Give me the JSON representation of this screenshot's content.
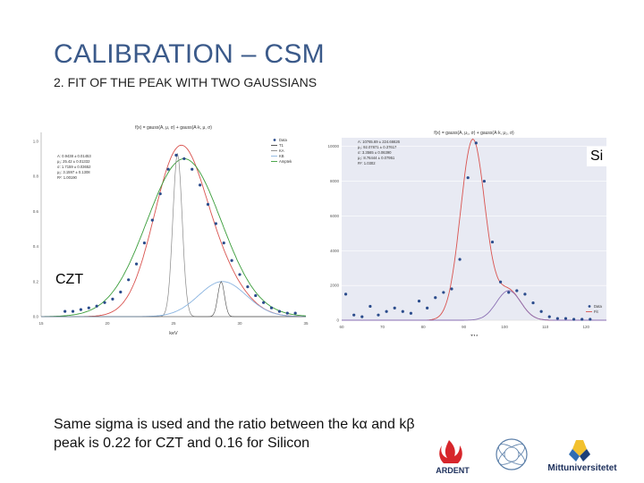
{
  "slide": {
    "title": "CALIBRATION – CSM",
    "subtitle": "2. FIT OF THE PEAK WITH TWO GAUSSIANS",
    "caption": "Same sigma is used and the ratio between the kα and kβ peak is 0.22 for CZT and 0.16 for Silicon"
  },
  "labels": {
    "czt": "CZT",
    "si": "Si"
  },
  "chart_data": [
    {
      "type": "scatter",
      "title": "f(x) = gauss(A, μ, σ) + gauss(A·k, μ, σ)",
      "xlabel": "keV",
      "ylabel": "",
      "xlim": [
        15,
        35
      ],
      "ylim": [
        0,
        1.05
      ],
      "x_ticks": [
        "15",
        "20",
        "25",
        "30",
        "35"
      ],
      "y_ticks": [
        "0.0",
        "0.2",
        "0.4",
        "0.6",
        "0.8",
        "1.0"
      ],
      "legend": [
        "Data",
        "T1",
        "KA",
        "KB",
        "Amptek"
      ],
      "legend_position": "top-right",
      "fit_text": [
        "A: 0.9438 ± 0.01453",
        "μ₁: 25.42 ± 0.01332",
        "σ: 1.7159 ± 0.03652",
        "μ₂: 3.1597 ± 0.1308",
        "R²: 1.00190"
      ],
      "points": [
        [
          16.8,
          0.03
        ],
        [
          17.4,
          0.03
        ],
        [
          18,
          0.04
        ],
        [
          18.6,
          0.05
        ],
        [
          19.2,
          0.06
        ],
        [
          19.8,
          0.08
        ],
        [
          20.4,
          0.1
        ],
        [
          21,
          0.14
        ],
        [
          21.6,
          0.21
        ],
        [
          22.2,
          0.3
        ],
        [
          22.8,
          0.42
        ],
        [
          23.4,
          0.55
        ],
        [
          24,
          0.7
        ],
        [
          24.6,
          0.84
        ],
        [
          25.2,
          0.92
        ],
        [
          25.8,
          0.9
        ],
        [
          26.4,
          0.84
        ],
        [
          27,
          0.75
        ],
        [
          27.6,
          0.64
        ],
        [
          28.2,
          0.53
        ],
        [
          28.8,
          0.42
        ],
        [
          29.4,
          0.32
        ],
        [
          30,
          0.24
        ],
        [
          30.6,
          0.17
        ],
        [
          31.2,
          0.12
        ],
        [
          31.8,
          0.08
        ],
        [
          32.4,
          0.05
        ],
        [
          33,
          0.03
        ],
        [
          33.6,
          0.02
        ],
        [
          34.2,
          0.02
        ]
      ]
    },
    {
      "type": "scatter",
      "title": "f(x) = gauss(A, μ₁, σ) + gauss(A·k, μ₂, σ)",
      "xlabel": "T1*",
      "ylabel": "",
      "xlim": [
        60,
        125
      ],
      "ylim": [
        0,
        10500
      ],
      "x_ticks": [
        "60",
        "70",
        "80",
        "90",
        "100",
        "110",
        "120"
      ],
      "y_ticks": [
        "0",
        "2000",
        "4000",
        "6000",
        "8000",
        "10000"
      ],
      "legend": [
        "Data",
        "Fit"
      ],
      "legend_position": "bottom-right",
      "fit_text": [
        "A: 10765.69 ± 224.66626",
        "μ₁: 92.07871 ± 0.37617",
        "σ: 3.3565 ± 0.06390",
        "μ₂: 8.76444 ± 0.07951",
        "R²: 1.0302"
      ],
      "points": [
        [
          61,
          1500
        ],
        [
          63,
          300
        ],
        [
          65,
          200
        ],
        [
          67,
          800
        ],
        [
          69,
          300
        ],
        [
          71,
          500
        ],
        [
          73,
          700
        ],
        [
          75,
          500
        ],
        [
          77,
          400
        ],
        [
          79,
          1100
        ],
        [
          81,
          700
        ],
        [
          83,
          1300
        ],
        [
          85,
          1600
        ],
        [
          87,
          1800
        ],
        [
          89,
          3500
        ],
        [
          91,
          8200
        ],
        [
          93,
          10200
        ],
        [
          95,
          8000
        ],
        [
          97,
          4500
        ],
        [
          99,
          2200
        ],
        [
          101,
          1600
        ],
        [
          103,
          1700
        ],
        [
          105,
          1500
        ],
        [
          107,
          1000
        ],
        [
          109,
          500
        ],
        [
          111,
          200
        ],
        [
          113,
          100
        ],
        [
          115,
          100
        ],
        [
          117,
          50
        ],
        [
          119,
          50
        ],
        [
          121,
          50
        ]
      ]
    }
  ]
}
